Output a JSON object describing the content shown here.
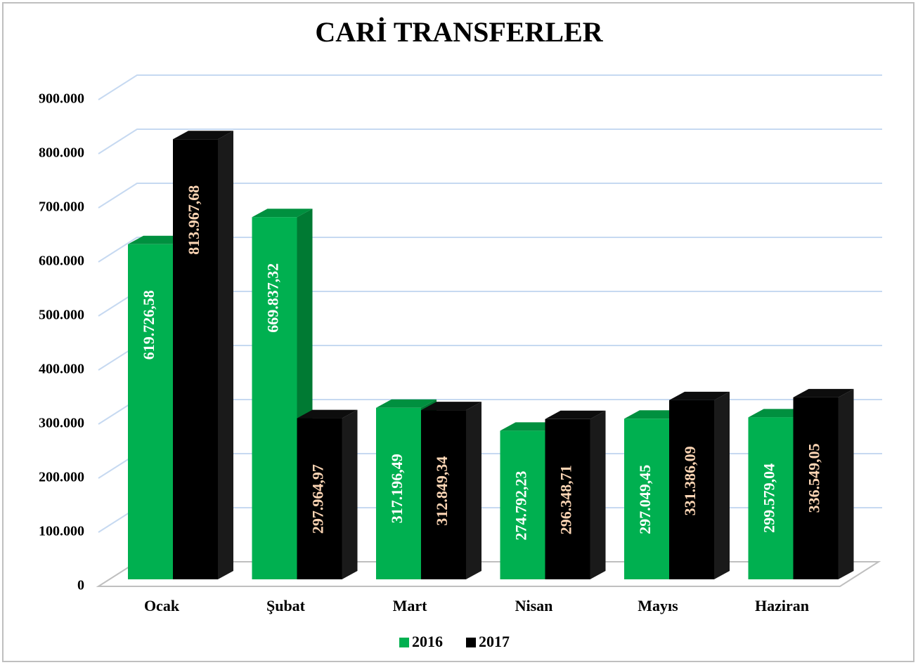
{
  "chart_data": {
    "type": "bar3d",
    "title": "CARİ TRANSFERLER",
    "categories": [
      "Ocak",
      "Şubat",
      "Mart",
      "Nisan",
      "Mayıs",
      "Haziran"
    ],
    "series": [
      {
        "name": "2016",
        "color": "#00b050",
        "values": [
          619726.58,
          669837.32,
          317196.49,
          274792.23,
          297049.45,
          299579.04
        ],
        "value_labels": [
          "619.726,58",
          "669.837,32",
          "317.196,49",
          "274.792,23",
          "297.049,45",
          "299.579,04"
        ]
      },
      {
        "name": "2017",
        "color": "#000000",
        "values": [
          813967.68,
          297964.97,
          312849.34,
          296348.71,
          331386.09,
          336549.05
        ],
        "value_labels": [
          "813.967,68",
          "297.964,97",
          "312.849,34",
          "296.348,71",
          "331.386,09",
          "336.549,05"
        ]
      }
    ],
    "ylim": [
      0,
      900000
    ],
    "yticks": [
      0,
      {
        "value": 100000,
        "label": "100.000"
      },
      {
        "value": 200000,
        "label": "200.000"
      },
      {
        "value": 300000,
        "label": "300.000"
      },
      {
        "value": 400000,
        "label": "400.000"
      },
      {
        "value": 500000,
        "label": "500.000"
      },
      {
        "value": 600000,
        "label": "600.000"
      },
      {
        "value": 700000,
        "label": "700.000"
      },
      {
        "value": 800000,
        "label": "800.000"
      },
      {
        "value": 900000,
        "label": "900.000"
      }
    ],
    "grid": true,
    "legend": "bottom"
  }
}
